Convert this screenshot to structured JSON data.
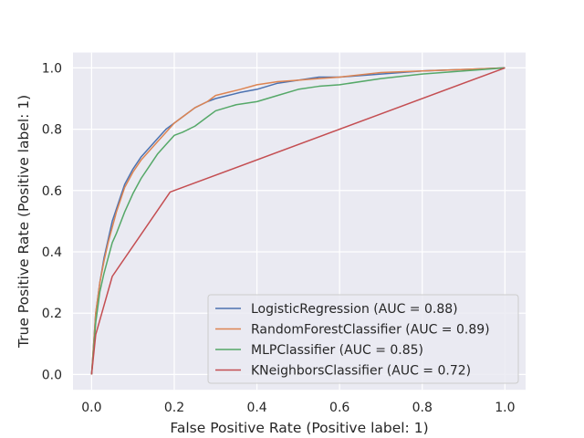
{
  "chart_data": {
    "type": "line",
    "title": "",
    "xlabel": "False Positive Rate (Positive label: 1)",
    "ylabel": "True Positive Rate (Positive label: 1)",
    "xlim": [
      -0.045,
      1.05
    ],
    "ylim": [
      -0.05,
      1.05
    ],
    "xticks": [
      "0.0",
      "0.2",
      "0.4",
      "0.6",
      "0.8",
      "1.0"
    ],
    "yticks": [
      "0.0",
      "0.2",
      "0.4",
      "0.6",
      "0.8",
      "1.0"
    ],
    "grid": true,
    "legend_position": "lower-right",
    "series": [
      {
        "name": "LogisticRegression (AUC = 0.88)",
        "color": "#4c72b0",
        "x": [
          0,
          0.005,
          0.01,
          0.02,
          0.03,
          0.04,
          0.05,
          0.06,
          0.07,
          0.08,
          0.1,
          0.12,
          0.14,
          0.16,
          0.18,
          0.2,
          0.22,
          0.25,
          0.28,
          0.3,
          0.33,
          0.36,
          0.4,
          0.45,
          0.5,
          0.55,
          0.6,
          0.7,
          0.8,
          0.9,
          1.0
        ],
        "y": [
          0,
          0.1,
          0.2,
          0.3,
          0.38,
          0.44,
          0.5,
          0.54,
          0.58,
          0.62,
          0.67,
          0.71,
          0.74,
          0.77,
          0.8,
          0.82,
          0.84,
          0.87,
          0.89,
          0.9,
          0.91,
          0.92,
          0.93,
          0.95,
          0.96,
          0.97,
          0.97,
          0.98,
          0.99,
          0.995,
          1.0
        ]
      },
      {
        "name": "RandomForestClassifier (AUC = 0.89)",
        "color": "#dd8452",
        "x": [
          0,
          0.005,
          0.01,
          0.02,
          0.03,
          0.04,
          0.05,
          0.06,
          0.07,
          0.08,
          0.1,
          0.12,
          0.14,
          0.16,
          0.18,
          0.2,
          0.22,
          0.25,
          0.28,
          0.3,
          0.33,
          0.36,
          0.4,
          0.45,
          0.5,
          0.55,
          0.6,
          0.7,
          0.8,
          0.9,
          1.0
        ],
        "y": [
          0,
          0.1,
          0.2,
          0.3,
          0.37,
          0.43,
          0.48,
          0.53,
          0.57,
          0.61,
          0.66,
          0.7,
          0.73,
          0.76,
          0.79,
          0.82,
          0.84,
          0.87,
          0.89,
          0.91,
          0.92,
          0.93,
          0.945,
          0.955,
          0.96,
          0.965,
          0.97,
          0.985,
          0.99,
          0.995,
          1.0
        ]
      },
      {
        "name": "MLPClassifier (AUC = 0.85)",
        "color": "#55a868",
        "x": [
          0,
          0.005,
          0.01,
          0.02,
          0.03,
          0.04,
          0.05,
          0.06,
          0.08,
          0.1,
          0.12,
          0.14,
          0.16,
          0.18,
          0.2,
          0.22,
          0.25,
          0.28,
          0.3,
          0.35,
          0.4,
          0.45,
          0.5,
          0.55,
          0.6,
          0.7,
          0.8,
          0.9,
          1.0
        ],
        "y": [
          0,
          0.08,
          0.17,
          0.27,
          0.33,
          0.38,
          0.43,
          0.46,
          0.53,
          0.59,
          0.64,
          0.68,
          0.72,
          0.75,
          0.78,
          0.79,
          0.81,
          0.84,
          0.86,
          0.88,
          0.89,
          0.91,
          0.93,
          0.94,
          0.945,
          0.965,
          0.98,
          0.99,
          1.0
        ]
      },
      {
        "name": "KNeighborsClassifier (AUC = 0.72)",
        "color": "#c44e52",
        "x": [
          0,
          0.01,
          0.05,
          0.19,
          1.0
        ],
        "y": [
          0,
          0.13,
          0.32,
          0.595,
          1.0
        ]
      }
    ]
  }
}
